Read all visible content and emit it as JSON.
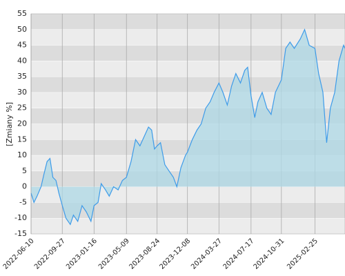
{
  "chart_data": {
    "type": "line",
    "y_label": "[Zmiany %]",
    "x": [
      "2022-06-10",
      "2022-06-20",
      "2022-07-01",
      "2022-07-15",
      "2022-07-25",
      "2022-08-05",
      "2022-08-15",
      "2022-08-25",
      "2022-09-05",
      "2022-09-15",
      "2022-09-27",
      "2022-10-10",
      "2022-10-25",
      "2022-11-05",
      "2022-11-20",
      "2022-12-05",
      "2022-12-20",
      "2023-01-05",
      "2023-01-16",
      "2023-01-30",
      "2023-02-10",
      "2023-02-25",
      "2023-03-10",
      "2023-03-25",
      "2023-04-10",
      "2023-04-25",
      "2023-05-09",
      "2023-05-25",
      "2023-06-10",
      "2023-06-25",
      "2023-07-10",
      "2023-07-25",
      "2023-08-05",
      "2023-08-15",
      "2023-08-24",
      "2023-09-05",
      "2023-09-20",
      "2023-10-05",
      "2023-10-20",
      "2023-11-01",
      "2023-11-15",
      "2023-12-01",
      "2023-12-08",
      "2023-12-25",
      "2024-01-10",
      "2024-01-25",
      "2024-02-10",
      "2024-02-25",
      "2024-03-10",
      "2024-03-27",
      "2024-04-10",
      "2024-04-25",
      "2024-05-10",
      "2024-05-25",
      "2024-06-10",
      "2024-06-25",
      "2024-07-05",
      "2024-07-17",
      "2024-07-30",
      "2024-08-10",
      "2024-08-25",
      "2024-09-10",
      "2024-09-25",
      "2024-10-10",
      "2024-10-31",
      "2024-11-15",
      "2024-11-30",
      "2024-12-15",
      "2025-01-05",
      "2025-01-20",
      "2025-02-05",
      "2025-02-25",
      "2025-03-10",
      "2025-03-25",
      "2025-04-07",
      "2025-04-20",
      "2025-05-05",
      "2025-05-20",
      "2025-06-05",
      "2025-06-10"
    ],
    "series": [
      {
        "color": "#3d9be9",
        "fill": "#add8e6",
        "values": [
          -2,
          -5,
          -3,
          0,
          4,
          8,
          9,
          3,
          2,
          -2,
          -6,
          -10,
          -12,
          -9,
          -11,
          -6,
          -8,
          -11,
          -6,
          -5,
          1,
          -1,
          -3,
          0,
          -1,
          2,
          3,
          8,
          15,
          13,
          16,
          19,
          18,
          12,
          13,
          14,
          7,
          5,
          3,
          0,
          6,
          10,
          11,
          15,
          18,
          20,
          25,
          27,
          30,
          33,
          30,
          26,
          32,
          36,
          33,
          37,
          38,
          29,
          22,
          27,
          30,
          25,
          23,
          30,
          34,
          44,
          46,
          44,
          47,
          50,
          45,
          44,
          36,
          30,
          14,
          25,
          30,
          40,
          45,
          44
        ]
      }
    ],
    "xlim": [
      "2022-06-10",
      "2025-06-10"
    ],
    "xticks": [
      "2022-06-10",
      "2022-09-27",
      "2023-01-16",
      "2023-05-09",
      "2023-08-24",
      "2023-12-08",
      "2024-03-27",
      "2024-07-17",
      "2024-10-31",
      "2025-02-25"
    ],
    "ylim": [
      -15,
      55
    ],
    "yticks": [
      -15,
      -10,
      -5,
      0,
      5,
      10,
      15,
      20,
      25,
      30,
      35,
      40,
      45,
      50,
      55
    ],
    "grid": true
  }
}
